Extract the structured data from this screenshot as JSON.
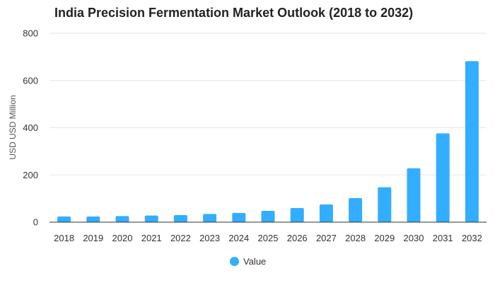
{
  "chart_data": {
    "type": "bar",
    "title": "India Precision Fermentation Market Outlook (2018 to 2032)",
    "xlabel": "",
    "ylabel": "USD USD Million",
    "categories": [
      "2018",
      "2019",
      "2020",
      "2021",
      "2022",
      "2023",
      "2024",
      "2025",
      "2026",
      "2027",
      "2028",
      "2029",
      "2030",
      "2031",
      "2032"
    ],
    "series": [
      {
        "name": "Value",
        "values": [
          24,
          24,
          26,
          28,
          30,
          35,
          39,
          48,
          60,
          75,
          102,
          148,
          228,
          376,
          682
        ]
      }
    ],
    "ylim": [
      0,
      800
    ],
    "yticks": [
      0,
      200,
      400,
      600,
      800
    ],
    "grid": true,
    "legend_position": "bottom",
    "colors": {
      "bar": "#33adff",
      "grid": "#e6e6e6",
      "axis": "#333333"
    }
  }
}
